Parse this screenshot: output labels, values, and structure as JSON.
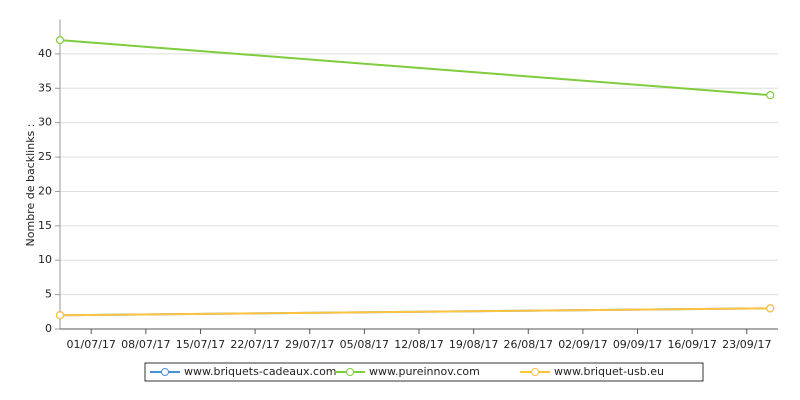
{
  "chart_data": {
    "type": "line",
    "y_label": "Nombre de backlinks :",
    "x": [
      "27/06/17",
      "26/09/17"
    ],
    "xlim": [
      "27/06/17",
      "27/09/17"
    ],
    "xticks": [
      "01/07/17",
      "08/07/17",
      "15/07/17",
      "22/07/17",
      "29/07/17",
      "05/08/17",
      "12/08/17",
      "19/08/17",
      "26/08/17",
      "02/09/17",
      "09/09/17",
      "16/09/17",
      "23/09/17"
    ],
    "ylim": [
      0,
      45
    ],
    "yticks": [
      0,
      5,
      10,
      15,
      20,
      25,
      30,
      35,
      40
    ],
    "grid": true,
    "series": [
      {
        "name": "www.briquets-cadeaux.com",
        "color": "#4a90d9",
        "values": [
          2,
          3
        ]
      },
      {
        "name": "www.pureinnov.com",
        "color": "#7fcc3c",
        "values": [
          42,
          34
        ]
      },
      {
        "name": "www.briquet-usb.eu",
        "color": "#ffc43d",
        "values": [
          2,
          3
        ]
      }
    ]
  }
}
